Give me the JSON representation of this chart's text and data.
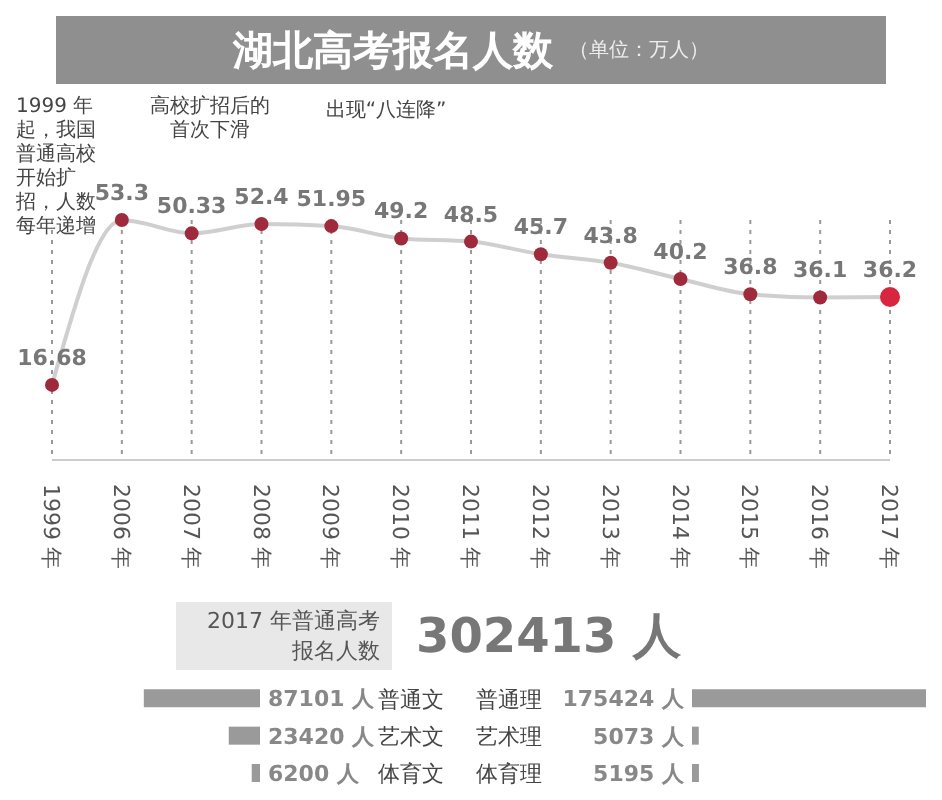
{
  "chart_data": [
    {
      "type": "line",
      "title": "湖北高考报名人数",
      "subtitle": "（单位：万人）",
      "categories": [
        "1999 年",
        "2006 年",
        "2007 年",
        "2008 年",
        "2009 年",
        "2010 年",
        "2011 年",
        "2012 年",
        "2013 年",
        "2014 年",
        "2015 年",
        "2016 年",
        "2017 年"
      ],
      "series": [
        {
          "color": "#cfcfcf",
          "colors": [
            "#9e2a3c",
            "#9e2a3c",
            "#9e2a3c",
            "#9e2a3c",
            "#9e2a3c",
            "#9e2a3c",
            "#9e2a3c",
            "#9e2a3c",
            "#9e2a3c",
            "#9e2a3c",
            "#9e2a3c",
            "#9e2a3c",
            "#d7263d"
          ],
          "values": [
            16.68,
            53.3,
            50.33,
            52.4,
            51.95,
            49.2,
            48.5,
            45.7,
            43.8,
            40.2,
            36.8,
            36.1,
            36.2
          ]
        }
      ],
      "data_labels": true,
      "marker": "circle",
      "grid": "x",
      "tick_labels": "x",
      "annotations": [
        "1999 年起，我国普通高校开始扩招，人数每年递增",
        "高校扩招后的首次下滑",
        "出现“八连降”"
      ]
    },
    {
      "type": "other",
      "title": "2017 年普通高考报名人数",
      "annotations": [
        "302413 人"
      ]
    },
    {
      "type": "bar",
      "orientation": "horizontal",
      "categories": [
        "普通文",
        "艺术文",
        "体育文"
      ],
      "values": [
        87101,
        23420,
        6200
      ],
      "value_labels": [
        "87101 人",
        "23420 人",
        "6200 人"
      ],
      "color": "#9a9a9a"
    },
    {
      "type": "bar",
      "orientation": "horizontal",
      "categories": [
        "普通理",
        "艺术理",
        "体育理"
      ],
      "values": [
        175424,
        5073,
        5195
      ],
      "value_labels": [
        "175424 人",
        "5073 人",
        "5195 人"
      ],
      "color": "#9a9a9a"
    }
  ]
}
